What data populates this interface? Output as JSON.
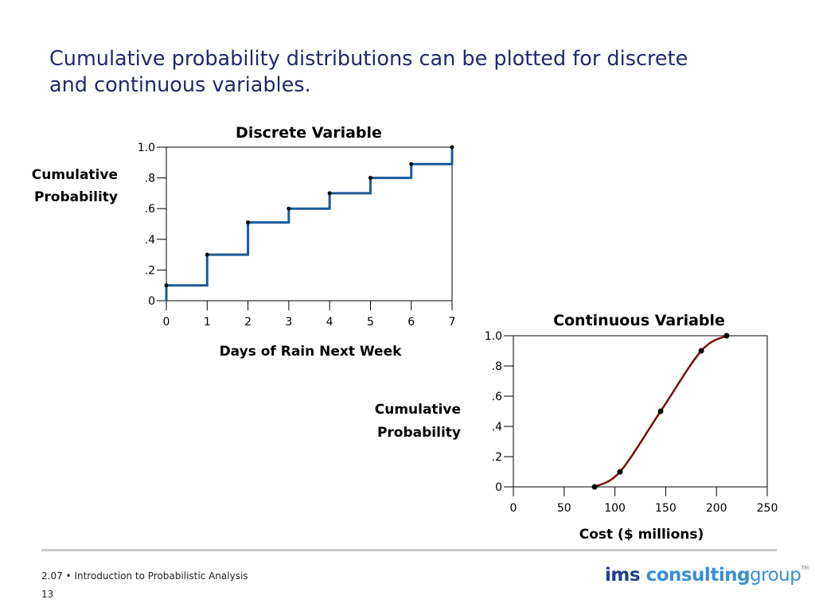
{
  "slide": {
    "title_line1": "Cumulative probability distributions can be plotted for discrete",
    "title_line2": "and continuous variables."
  },
  "colors": {
    "title": "#1f2a6b",
    "discrete_line": "#1a5a96",
    "continuous_curve": "#7a1010",
    "axis": "#000000"
  },
  "chart_data": [
    {
      "type": "line",
      "step": true,
      "title": "Discrete Variable",
      "xlabel": "Days of Rain Next Week",
      "ylabel_line1": "Cumulative",
      "ylabel_line2": "Probability",
      "xlim": [
        0,
        7
      ],
      "ylim": [
        0,
        1.0
      ],
      "x_ticks": [
        "0",
        "1",
        "2",
        "3",
        "4",
        "5",
        "6",
        "7"
      ],
      "y_ticks": [
        "0",
        ".2",
        ".4",
        ".6",
        ".8",
        "1.0"
      ],
      "x": [
        0,
        1,
        2,
        3,
        4,
        5,
        6,
        7
      ],
      "y": [
        0.1,
        0.3,
        0.51,
        0.6,
        0.7,
        0.8,
        0.89,
        1.0
      ],
      "grid": false
    },
    {
      "type": "line",
      "title": "Continuous Variable",
      "xlabel": "Cost ($ millions)",
      "ylabel_line1": "Cumulative",
      "ylabel_line2": "Probability",
      "xlim": [
        0,
        250
      ],
      "ylim": [
        0,
        1.0
      ],
      "x_ticks": [
        "0",
        "50",
        "100",
        "150",
        "200",
        "250"
      ],
      "y_ticks": [
        "0",
        ".2",
        ".4",
        ".6",
        ".8",
        "1.0"
      ],
      "x": [
        80,
        105,
        145,
        185,
        210
      ],
      "y": [
        0.0,
        0.1,
        0.5,
        0.9,
        1.0
      ],
      "grid": false
    }
  ],
  "footer": {
    "course": "2.07 • Introduction to Probabilistic Analysis",
    "page": "13"
  },
  "logo": {
    "ims": "ims",
    "consulting": "consulting",
    "group": "group",
    "tm": "TM"
  }
}
